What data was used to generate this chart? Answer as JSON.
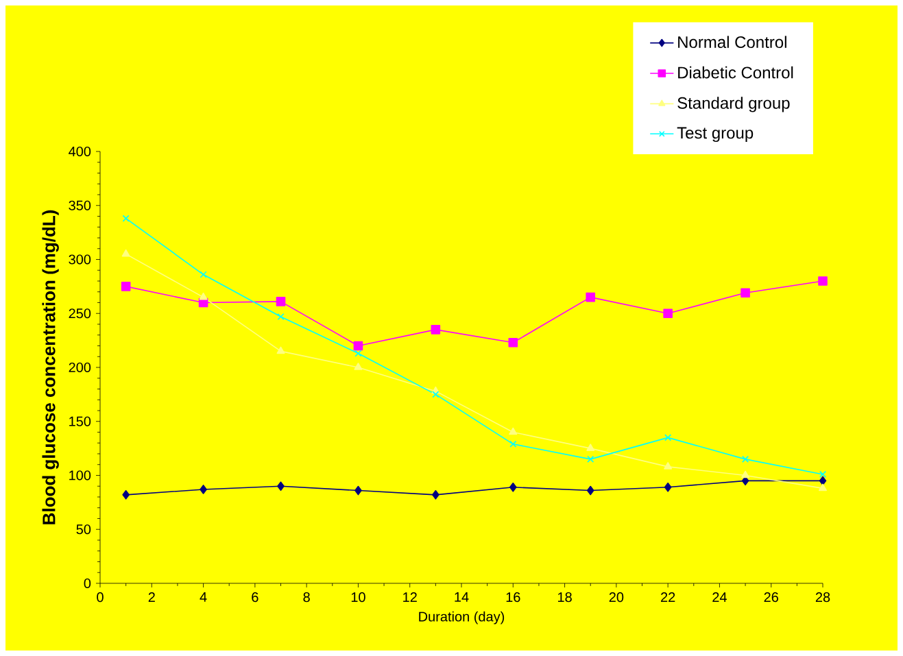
{
  "chart_data": {
    "type": "line",
    "xlabel": "Duration (day)",
    "ylabel": "Blood glucose concentration (mg/dL)",
    "x": [
      1,
      4,
      7,
      10,
      13,
      16,
      19,
      22,
      25,
      28
    ],
    "series": [
      {
        "name": "Normal Control",
        "color": "#000080",
        "marker": "diamond",
        "values": [
          82,
          87,
          90,
          86,
          82,
          89,
          86,
          89,
          95,
          95
        ]
      },
      {
        "name": "Diabetic Control",
        "color": "#ff00ff",
        "marker": "square",
        "values": [
          275,
          260,
          261,
          220,
          235,
          223,
          265,
          250,
          269,
          280
        ]
      },
      {
        "name": "Standard group",
        "color": "#ffff80",
        "marker": "triangle",
        "values": [
          305,
          265,
          215,
          200,
          178,
          140,
          125,
          108,
          100,
          88
        ]
      },
      {
        "name": "Test group",
        "color": "#00ffff",
        "marker": "cross",
        "values": [
          338,
          286,
          247,
          213,
          175,
          129,
          115,
          135,
          115,
          101
        ]
      }
    ],
    "xlim": [
      0,
      28
    ],
    "xticks": [
      0,
      2,
      4,
      6,
      8,
      10,
      12,
      14,
      16,
      18,
      20,
      22,
      24,
      26,
      28
    ],
    "ylim": [
      0,
      400
    ],
    "yticks": [
      0,
      50,
      100,
      150,
      200,
      250,
      300,
      350,
      400
    ],
    "grid": false,
    "legend": "top right"
  }
}
